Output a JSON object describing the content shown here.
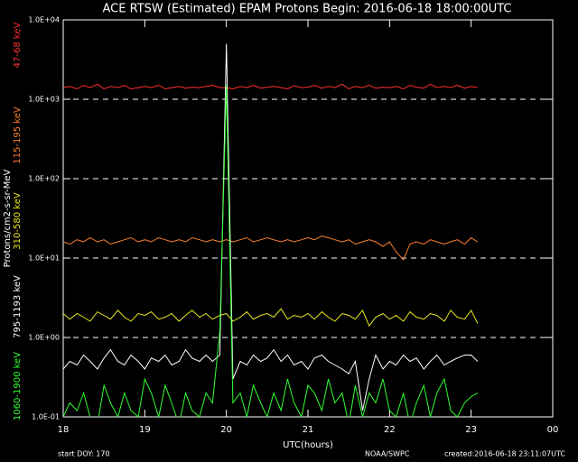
{
  "chart_data": {
    "type": "line",
    "title": "ACE RTSW (Estimated) EPAM Protons     Begin: 2016-06-18 18:00:00UTC",
    "x_label": "UTC(hours)",
    "y_label": "Protons/cm2-s-sr-MeV",
    "footer_left": "start DOY:  170",
    "footer_center": "NOAA/SWPC",
    "footer_right": "created:2016-06-18 23:11:07UTC",
    "ylog": true,
    "grid": true,
    "xlim": [
      18,
      24
    ],
    "xticks": [
      18,
      19,
      20,
      21,
      22,
      23,
      {
        "value": 24,
        "label": "00"
      }
    ],
    "ylim": [
      0.1,
      10000
    ],
    "yticks": [
      {
        "value": 0.1,
        "label": "1.0E-01"
      },
      {
        "value": 1,
        "label": "1.0E+00"
      },
      {
        "value": 10,
        "label": "1.0E+01"
      },
      {
        "value": 100,
        "label": "1.0E+02"
      },
      {
        "value": 1000,
        "label": "1.0E+03"
      },
      {
        "value": 10000,
        "label": "1.0E+04"
      }
    ],
    "x": [
      18,
      18.08,
      18.17,
      18.25,
      18.33,
      18.42,
      18.5,
      18.58,
      18.67,
      18.75,
      18.83,
      18.92,
      19,
      19.08,
      19.17,
      19.25,
      19.33,
      19.42,
      19.5,
      19.58,
      19.67,
      19.75,
      19.83,
      19.92,
      20,
      20.08,
      20.17,
      20.25,
      20.33,
      20.42,
      20.5,
      20.58,
      20.67,
      20.75,
      20.83,
      20.92,
      21,
      21.08,
      21.17,
      21.25,
      21.33,
      21.42,
      21.5,
      21.58,
      21.67,
      21.75,
      21.83,
      21.92,
      22,
      22.08,
      22.17,
      22.25,
      22.33,
      22.42,
      22.5,
      22.58,
      22.67,
      22.75,
      22.83,
      22.92,
      23,
      23.08
    ],
    "series": [
      {
        "name": "47-68 keV",
        "color": "#ff3030",
        "values": [
          1400,
          1450,
          1350,
          1500,
          1400,
          1550,
          1350,
          1450,
          1400,
          1500,
          1350,
          1400,
          1450,
          1400,
          1500,
          1350,
          1400,
          1450,
          1380,
          1420,
          1400,
          1450,
          1500,
          1400,
          1400,
          1350,
          1450,
          1400,
          1500,
          1380,
          1420,
          1450,
          1400,
          1350,
          1480,
          1400,
          1420,
          1500,
          1380,
          1450,
          1400,
          1550,
          1350,
          1450,
          1400,
          1500,
          1380,
          1420,
          1400,
          1450,
          1350,
          1500,
          1420,
          1380,
          1550,
          1400,
          1450,
          1400,
          1500,
          1380,
          1450,
          1400
        ]
      },
      {
        "name": "115-195 keV",
        "color": "#ff8030",
        "values": [
          16,
          15,
          17,
          16,
          18,
          16,
          17,
          15,
          16,
          17,
          18,
          16,
          17,
          16,
          18,
          17,
          16,
          17,
          16,
          18,
          17,
          16,
          17,
          16,
          17,
          16,
          17,
          18,
          16,
          17,
          18,
          17,
          16,
          17,
          16,
          17,
          18,
          17,
          19,
          18,
          17,
          16,
          17,
          15,
          16,
          17,
          16,
          14,
          16,
          12,
          9.5,
          15,
          16,
          15,
          17,
          16,
          15,
          16,
          17,
          15,
          18,
          16
        ]
      },
      {
        "name": "310-580 keV",
        "color": "#e8e820",
        "values": [
          2,
          1.7,
          2,
          1.8,
          1.6,
          2.1,
          1.9,
          1.7,
          2.2,
          1.8,
          1.6,
          2,
          1.9,
          2.1,
          1.7,
          1.8,
          2,
          1.6,
          1.9,
          2.2,
          1.8,
          2,
          1.7,
          1.9,
          2,
          1.6,
          1.8,
          2.1,
          1.7,
          1.9,
          2,
          1.8,
          2.3,
          1.7,
          1.9,
          1.8,
          2,
          1.7,
          2.1,
          1.8,
          1.6,
          2,
          1.9,
          1.7,
          2.2,
          1.4,
          1.8,
          2,
          1.7,
          1.9,
          1.6,
          2.1,
          1.8,
          1.7,
          2,
          1.9,
          1.6,
          2.2,
          1.8,
          1.7,
          2.2,
          1.5
        ]
      },
      {
        "name": "795-1193 keV",
        "color": "#ffffff",
        "values": [
          0.4,
          0.5,
          0.45,
          0.6,
          0.5,
          0.4,
          0.55,
          0.7,
          0.5,
          0.45,
          0.6,
          0.5,
          0.4,
          0.55,
          0.5,
          0.6,
          0.45,
          0.5,
          0.7,
          0.55,
          0.5,
          0.6,
          0.5,
          0.6,
          5000,
          0.3,
          0.5,
          0.45,
          0.6,
          0.5,
          0.55,
          0.7,
          0.5,
          0.6,
          0.45,
          0.5,
          0.4,
          0.55,
          0.6,
          0.5,
          0.45,
          0.4,
          0.35,
          0.5,
          0.12,
          0.3,
          0.6,
          0.4,
          0.5,
          0.45,
          0.6,
          0.5,
          0.55,
          0.4,
          0.5,
          0.6,
          0.45,
          0.5,
          0.55,
          0.6,
          0.6,
          0.5
        ]
      },
      {
        "name": "1060-1900 keV",
        "color": "#30ff30",
        "values": [
          0.1,
          0.15,
          0.12,
          0.2,
          0.1,
          0.08,
          0.25,
          0.15,
          0.1,
          0.2,
          0.12,
          0.1,
          0.3,
          0.2,
          0.1,
          0.25,
          0.15,
          0.08,
          0.2,
          0.12,
          0.1,
          0.2,
          0.15,
          1.2,
          1500,
          0.15,
          0.2,
          0.1,
          0.25,
          0.15,
          0.1,
          0.2,
          0.12,
          0.3,
          0.15,
          0.1,
          0.25,
          0.2,
          0.12,
          0.3,
          0.15,
          0.2,
          0.08,
          0.25,
          0.1,
          0.2,
          0.15,
          0.3,
          0.12,
          0.1,
          0.2,
          0.08,
          0.15,
          0.25,
          0.1,
          0.2,
          0.3,
          0.12,
          0.1,
          0.15,
          0.18,
          0.2
        ]
      }
    ]
  }
}
